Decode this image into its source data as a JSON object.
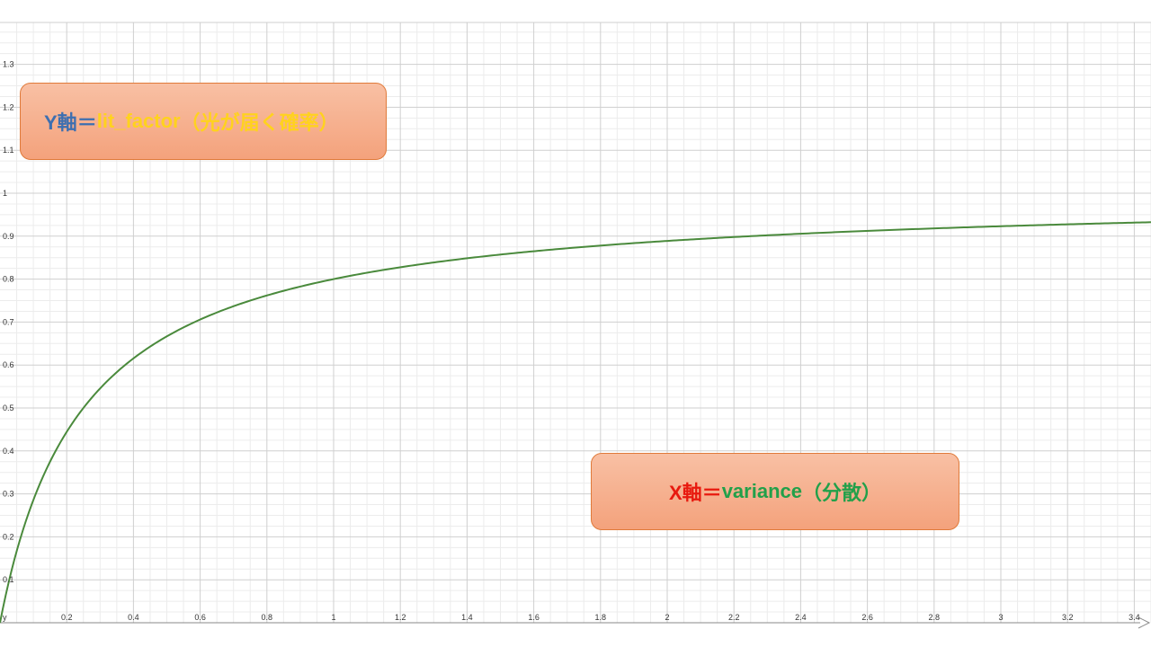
{
  "chart_data": {
    "type": "line",
    "title": "",
    "xlabel": "",
    "ylabel": "",
    "xlim": [
      0,
      3.45
    ],
    "ylim": [
      0,
      1.36
    ],
    "x_ticks": [
      "0.2",
      "0.4",
      "0.6",
      "0.8",
      "1",
      "1.2",
      "1.4",
      "1.6",
      "1.8",
      "2",
      "2.2",
      "2.4",
      "2.6",
      "2.8",
      "3",
      "3.2",
      "3.4"
    ],
    "y_ticks": [
      "0.1",
      "0.2",
      "0.3",
      "0.4",
      "0.5",
      "0.6",
      "0.7",
      "0.8",
      "0.9",
      "1",
      "1.1",
      "1.2",
      "1.3"
    ],
    "origin_label": "y",
    "grid": true,
    "series": [
      {
        "color": "#4a8a3c",
        "x": [
          0,
          0.05,
          0.1,
          0.15,
          0.2,
          0.25,
          0.3,
          0.4,
          0.5,
          0.6,
          0.8,
          1.0,
          1.2,
          1.4,
          1.6,
          1.8,
          2.0,
          2.2,
          2.4,
          2.6,
          2.8,
          3.0,
          3.2,
          3.45
        ],
        "values": [
          0,
          0.167,
          0.286,
          0.375,
          0.444,
          0.5,
          0.545,
          0.615,
          0.667,
          0.706,
          0.762,
          0.8,
          0.828,
          0.848,
          0.865,
          0.878,
          0.889,
          0.898,
          0.906,
          0.912,
          0.918,
          0.923,
          0.928,
          0.932
        ]
      }
    ]
  },
  "annotations": {
    "y_axis": {
      "prefix": "Y軸",
      "equals": "＝",
      "name": "lit_factor",
      "desc": "（光が届く確率）",
      "prefix_color": "#3d6fb0",
      "equals_color": "#3d6fb0",
      "name_color": "#ffd21e",
      "desc_color": "#ffd21e"
    },
    "x_axis": {
      "prefix": "X軸",
      "equals": "＝",
      "name": "variance",
      "desc": "（分散）",
      "prefix_color": "#e8190e",
      "equals_color": "#e8190e",
      "name_color": "#22a04a",
      "desc_color": "#22a04a"
    }
  }
}
